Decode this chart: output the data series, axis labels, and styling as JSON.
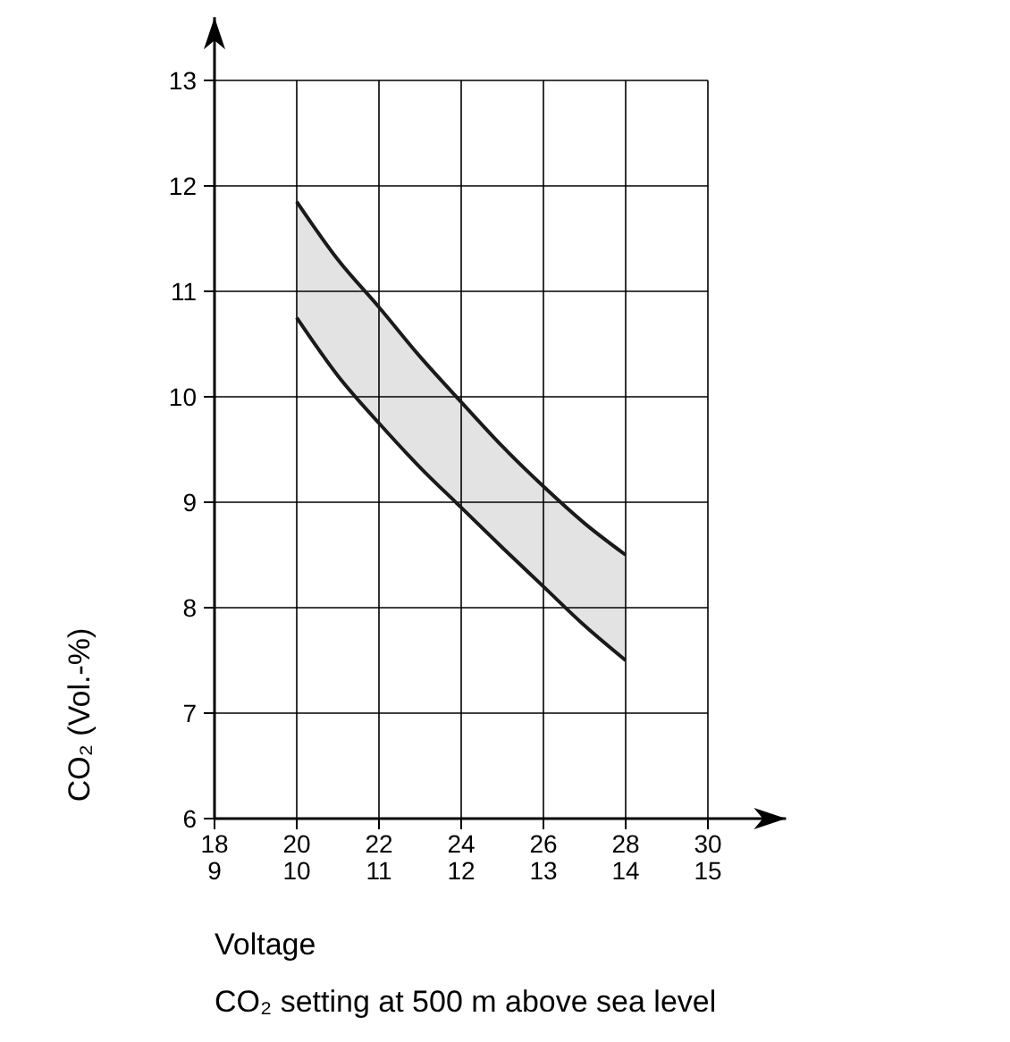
{
  "chart_data": {
    "type": "line",
    "xlabel": "Voltage",
    "ylabel": "CO₂ (Vol.-%)",
    "annotations": [
      "CO₂ setting at 500 m above sea level"
    ],
    "x": [
      20,
      21,
      22,
      23,
      24,
      25,
      26,
      27,
      28
    ],
    "series": [
      {
        "color": "#1a1a1a",
        "values": [
          11.85,
          11.3,
          10.85,
          10.38,
          9.95,
          9.53,
          9.15,
          8.8,
          8.5
        ],
        "upper": [
          11.85,
          11.3,
          10.85,
          10.38,
          9.95,
          9.53,
          9.15,
          8.8,
          8.5
        ],
        "lower": [
          10.75,
          10.2,
          9.75,
          9.33,
          8.95,
          8.57,
          8.2,
          7.83,
          7.5
        ]
      },
      {
        "color": "#1a1a1a",
        "values": [
          10.75,
          10.2,
          9.75,
          9.33,
          8.95,
          8.57,
          8.2,
          7.83,
          7.5
        ]
      }
    ],
    "xlim": [
      18,
      31.9
    ],
    "ylim": [
      6,
      13.6
    ],
    "xticks": [
      18,
      20,
      22,
      24,
      26,
      28,
      30
    ],
    "x2lim": [
      9,
      15.95
    ],
    "x2ticks": [
      9,
      10,
      11,
      12,
      13,
      14,
      15
    ],
    "yticks": [
      6,
      7,
      8,
      9,
      10,
      11,
      12,
      13
    ],
    "grid": true,
    "line_style": "solid"
  }
}
